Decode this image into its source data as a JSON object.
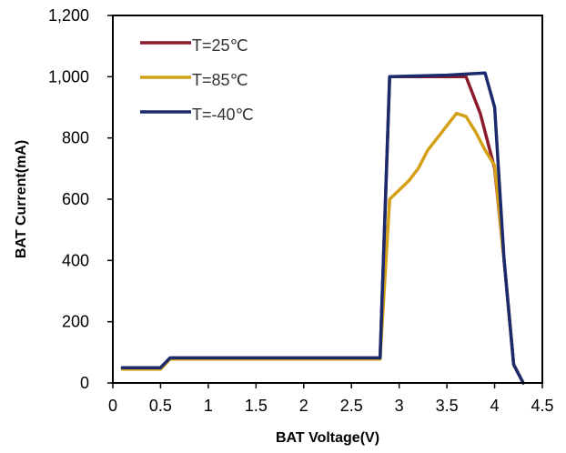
{
  "chart_data": {
    "type": "line",
    "title": "",
    "xlabel": "BAT Voltage(V)",
    "ylabel": "BAT Current(mA)",
    "xlim": [
      0,
      4.5
    ],
    "ylim": [
      0,
      1200
    ],
    "x_ticks": [
      "0",
      "0.5",
      "1",
      "1.5",
      "2",
      "2.5",
      "3",
      "3.5",
      "4",
      "4.5"
    ],
    "y_ticks": [
      "0",
      "200",
      "400",
      "600",
      "800",
      "1,000",
      "1,200"
    ],
    "grid": false,
    "legend_position": "top-left",
    "series": [
      {
        "name": "T=25℃",
        "color": "#8b1a2b",
        "points": [
          [
            0.1,
            50
          ],
          [
            0.5,
            50
          ],
          [
            0.6,
            80
          ],
          [
            2.8,
            80
          ],
          [
            2.9,
            1000
          ],
          [
            3.7,
            1000
          ],
          [
            3.85,
            880
          ],
          [
            4.0,
            700
          ],
          [
            4.1,
            400
          ],
          [
            4.2,
            60
          ],
          [
            4.3,
            0
          ]
        ]
      },
      {
        "name": "T=85℃",
        "color": "#d4a017",
        "points": [
          [
            0.1,
            45
          ],
          [
            0.5,
            45
          ],
          [
            0.6,
            78
          ],
          [
            2.8,
            78
          ],
          [
            2.9,
            600
          ],
          [
            3.0,
            630
          ],
          [
            3.1,
            660
          ],
          [
            3.2,
            700
          ],
          [
            3.3,
            760
          ],
          [
            3.4,
            800
          ],
          [
            3.5,
            840
          ],
          [
            3.6,
            880
          ],
          [
            3.7,
            870
          ],
          [
            3.8,
            820
          ],
          [
            3.9,
            760
          ],
          [
            4.0,
            710
          ],
          [
            4.1,
            400
          ],
          [
            4.2,
            60
          ],
          [
            4.3,
            0
          ]
        ]
      },
      {
        "name": "T=-40℃",
        "color": "#1a2a6c",
        "points": [
          [
            0.1,
            50
          ],
          [
            0.5,
            50
          ],
          [
            0.6,
            82
          ],
          [
            2.8,
            82
          ],
          [
            2.9,
            1000
          ],
          [
            3.5,
            1005
          ],
          [
            3.9,
            1012
          ],
          [
            4.0,
            900
          ],
          [
            4.1,
            400
          ],
          [
            4.2,
            60
          ],
          [
            4.3,
            0
          ]
        ]
      }
    ]
  }
}
